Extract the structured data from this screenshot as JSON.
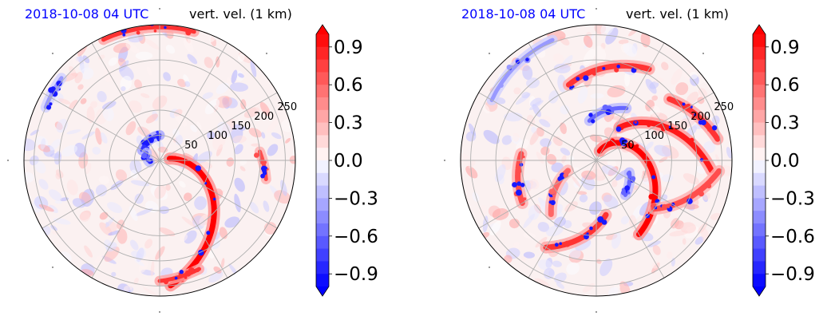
{
  "timestamp_color": "#0000ff",
  "chart_data": [
    {
      "type": "heatmap",
      "projection": "polar",
      "title_left": "2018-10-08 04 UTC",
      "title_right": "vert. vel. (1 km)",
      "radial_ticks": [
        "50",
        "100",
        "150",
        "200",
        "250"
      ],
      "radial_values": [
        50,
        100,
        150,
        200,
        250
      ],
      "angular_gridlines_deg": [
        0,
        30,
        60,
        90,
        120,
        150,
        180,
        210,
        240,
        270,
        300,
        330
      ],
      "grid": true,
      "colormap": "bwr",
      "colorbar": {
        "ticks": [
          "0.9",
          "0.6",
          "0.3",
          "0.0",
          "−0.3",
          "−0.6",
          "−0.9"
        ],
        "range": [
          -1.0,
          1.0
        ],
        "extend": "both",
        "placement": "right"
      },
      "features": [
        {
          "shape": "spiral band",
          "value": 1.0,
          "start_deg": 10,
          "end_deg": -85,
          "r_start": 20,
          "r_end": 250
        },
        {
          "shape": "arc",
          "value": 0.8,
          "start_deg": 75,
          "end_deg": 115,
          "r_start": 265,
          "r_end": 265
        },
        {
          "shape": "arc",
          "value": 0.7,
          "start_deg": 5,
          "end_deg": -10,
          "r_start": 200,
          "r_end": 215
        },
        {
          "shape": "arc",
          "value": 0.8,
          "start_deg": -70,
          "end_deg": -90,
          "r_start": 230,
          "r_end": 240
        },
        {
          "shape": "arc",
          "value": -0.8,
          "start_deg": 150,
          "end_deg": 90,
          "r_start": 40,
          "r_end": 50
        },
        {
          "shape": "arc",
          "value": -0.6,
          "start_deg": 190,
          "end_deg": 150,
          "r_start": 20,
          "r_end": 30
        },
        {
          "shape": "arc",
          "value": -0.4,
          "start_deg": 155,
          "end_deg": 140,
          "r_start": 250,
          "r_end": 255
        }
      ]
    },
    {
      "type": "heatmap",
      "projection": "polar",
      "title_left": "2018-10-08 04 UTC",
      "title_right": "vert. vel. (1 km)",
      "radial_ticks": [
        "50",
        "100",
        "150",
        "200",
        "250"
      ],
      "radial_values": [
        50,
        100,
        150,
        200,
        250
      ],
      "angular_gridlines_deg": [
        0,
        30,
        60,
        90,
        120,
        150,
        180,
        210,
        240,
        270,
        300,
        330
      ],
      "grid": true,
      "colormap": "bwr",
      "colorbar": {
        "ticks": [
          "0.9",
          "0.6",
          "0.3",
          "0.0",
          "−0.3",
          "−0.6",
          "−0.9"
        ],
        "range": [
          -1.0,
          1.0
        ],
        "extend": "both",
        "placement": "right"
      },
      "features": [
        {
          "shape": "spiral band",
          "value": 1.0,
          "start_deg": 70,
          "end_deg": -60,
          "r_start": 20,
          "r_end": 170
        },
        {
          "shape": "spiral band",
          "value": 0.9,
          "start_deg": 55,
          "end_deg": -5,
          "r_start": 80,
          "r_end": 230
        },
        {
          "shape": "spiral band",
          "value": 0.8,
          "start_deg": 40,
          "end_deg": 10,
          "r_start": 190,
          "r_end": 245
        },
        {
          "shape": "spiral band",
          "value": 0.8,
          "start_deg": 110,
          "end_deg": 60,
          "r_start": 160,
          "r_end": 210
        },
        {
          "shape": "spiral band",
          "value": 0.8,
          "start_deg": -80,
          "end_deg": -120,
          "r_start": 110,
          "r_end": 200
        },
        {
          "shape": "spiral band",
          "value": 0.7,
          "start_deg": 175,
          "end_deg": 210,
          "r_start": 150,
          "r_end": 170
        },
        {
          "shape": "spiral band",
          "value": 0.6,
          "start_deg": 200,
          "end_deg": 230,
          "r_start": 60,
          "r_end": 140
        },
        {
          "shape": "spiral band",
          "value": 0.7,
          "start_deg": -40,
          "end_deg": -5,
          "r_start": 150,
          "r_end": 245
        },
        {
          "shape": "arc",
          "value": -0.6,
          "start_deg": 100,
          "end_deg": 60,
          "r_start": 80,
          "r_end": 120
        },
        {
          "shape": "arc",
          "value": -0.6,
          "start_deg": -20,
          "end_deg": -50,
          "r_start": 70,
          "r_end": 90
        },
        {
          "shape": "arc",
          "value": -0.4,
          "start_deg": 150,
          "end_deg": 110,
          "r_start": 240,
          "r_end": 255
        }
      ]
    }
  ]
}
